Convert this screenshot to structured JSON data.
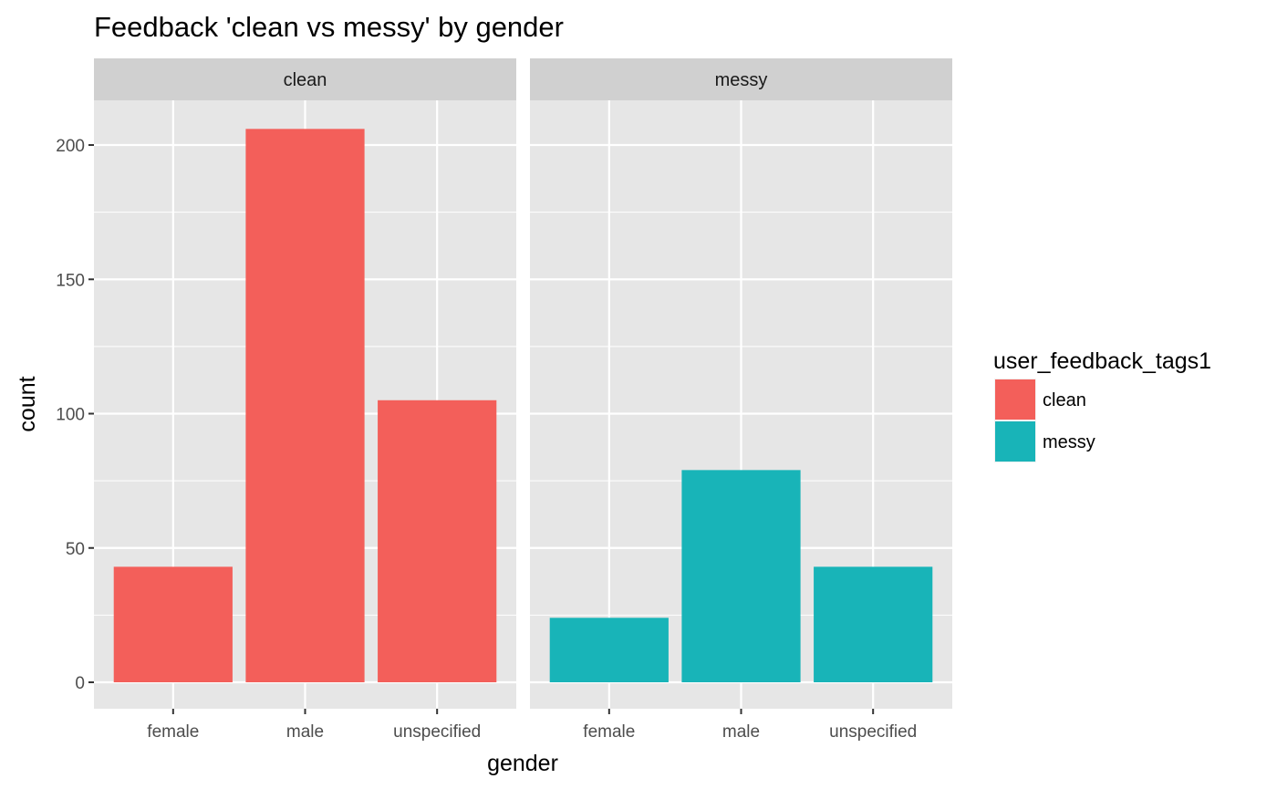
{
  "chart_data": {
    "type": "bar",
    "title": "Feedback 'clean vs messy' by gender",
    "xlabel": "gender",
    "ylabel": "count",
    "ylim": [
      0,
      220
    ],
    "yticks": [
      0,
      50,
      100,
      150,
      200
    ],
    "categories": [
      "female",
      "male",
      "unspecified"
    ],
    "grid": true,
    "facets": [
      {
        "label": "clean",
        "series": "clean",
        "values": [
          43,
          206,
          105
        ]
      },
      {
        "label": "messy",
        "series": "messy",
        "values": [
          24,
          79,
          43
        ]
      }
    ],
    "legend": {
      "title": "user_feedback_tags1",
      "placement": "right",
      "entries": [
        {
          "label": "clean",
          "color": "#F8766D"
        },
        {
          "label": "messy",
          "color": "#00BFC4"
        }
      ]
    },
    "colors": {
      "clean": "#F35F5A",
      "messy": "#18B4B8",
      "panel_bg": "#E6E6E6",
      "strip_bg": "#D0D0D0",
      "grid": "#FFFFFF"
    }
  }
}
